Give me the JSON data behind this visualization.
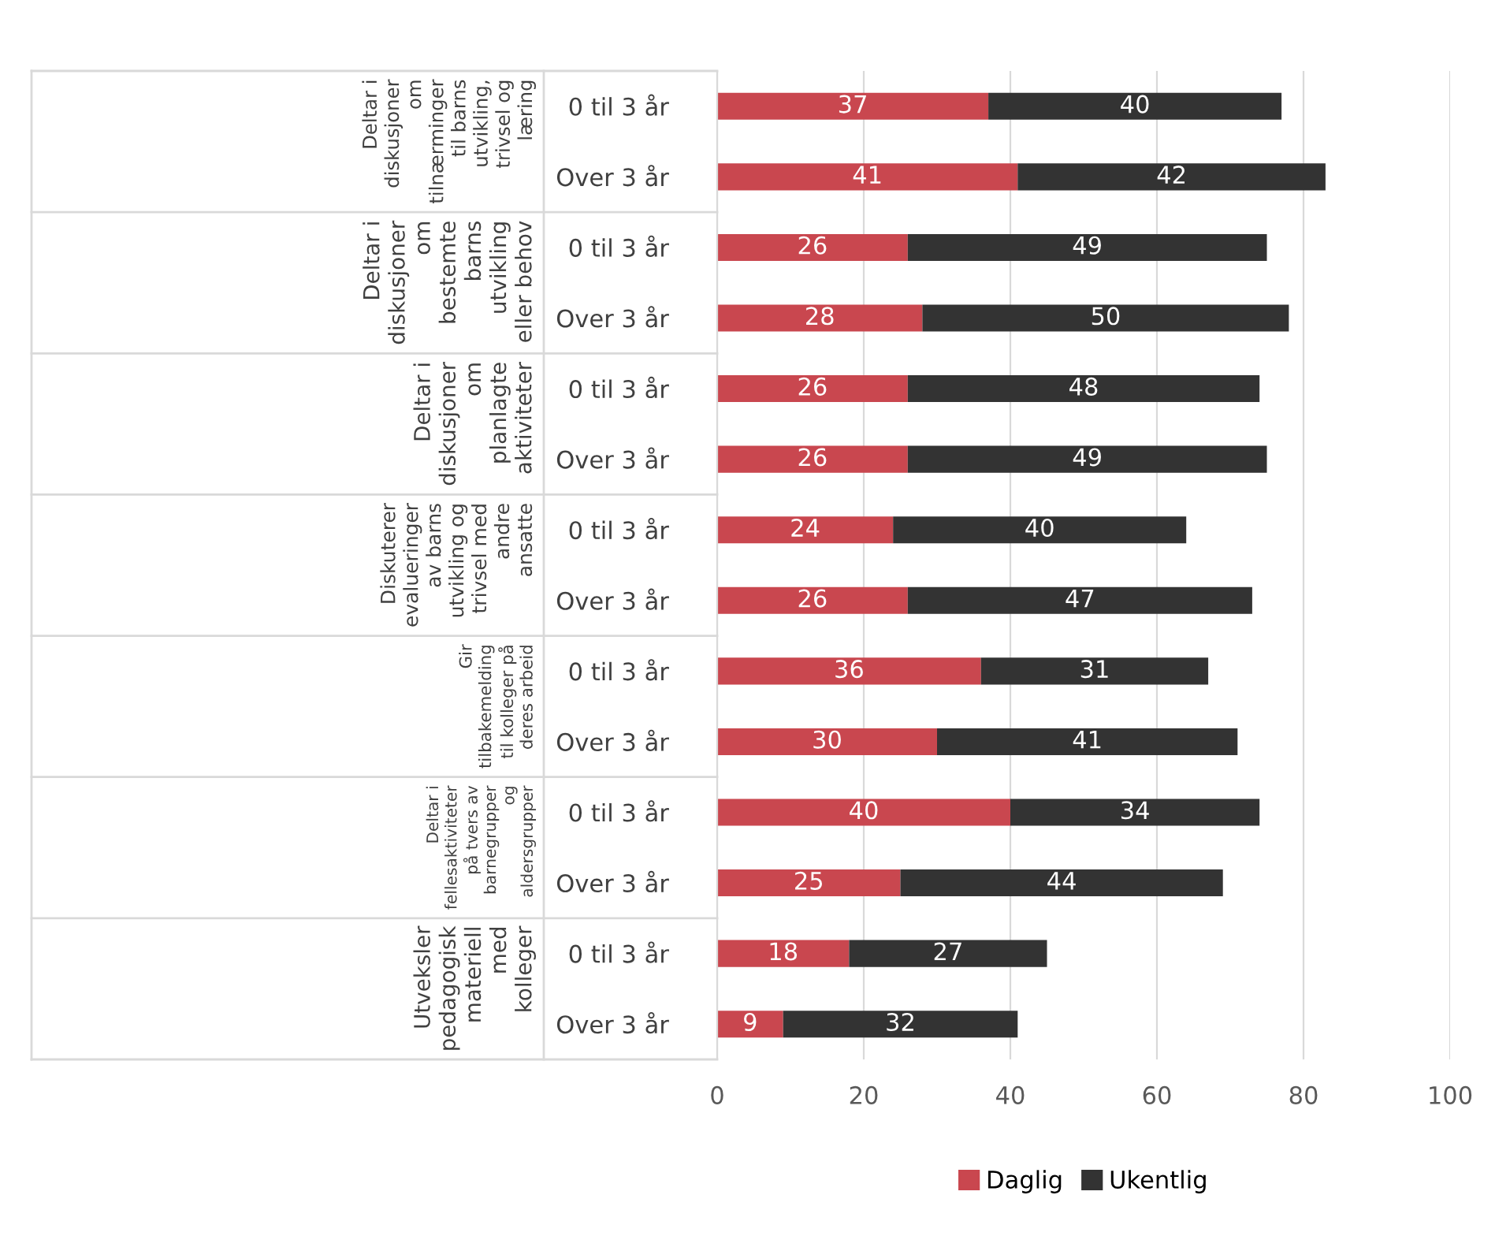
{
  "chart_data": {
    "type": "bar",
    "orientation": "horizontal",
    "stacked": true,
    "categories": [
      "0 til 3 år",
      "Over 3 år",
      "0 til 3 år",
      "Over 3 år",
      "0 til 3 år",
      "Over 3 år",
      "0 til 3 år",
      "Over 3 år",
      "0 til 3 år",
      "Over 3 år",
      "0 til 3 år",
      "Over 3 år",
      "0 til 3 år",
      "Over 3 år"
    ],
    "series": [
      {
        "name": "Daglig",
        "color": "#c9474f",
        "values": [
          37,
          41,
          26,
          28,
          26,
          26,
          24,
          26,
          36,
          30,
          40,
          25,
          18,
          9
        ]
      },
      {
        "name": "Ukentlig",
        "color": "#333333",
        "values": [
          40,
          42,
          49,
          50,
          48,
          49,
          40,
          47,
          31,
          41,
          34,
          44,
          27,
          32
        ]
      }
    ],
    "annotations": [
      "Deltar i diskusjoner om tilnærminger til barns utvikling, trivsel og læring",
      "Deltar i diskusjoner om bestemte barns utvikling eller behov",
      "Deltar i diskusjoner om planlagte aktiviteter",
      "Diskuterer evalueringer av barns utvikling og trivsel med andre ansatte",
      "Gir tilbakemelding til kolleger på deres arbeid",
      "Deltar i fellesaktiviteter på tvers av barnegrupper og aldersgrupper",
      "Utveksler pedagogisk materiell med kolleger"
    ],
    "xlim": [
      0,
      100
    ],
    "xticks": [
      0,
      20,
      40,
      60,
      80,
      100
    ],
    "grid": "x",
    "legend": "bottom",
    "data_labels": true
  }
}
